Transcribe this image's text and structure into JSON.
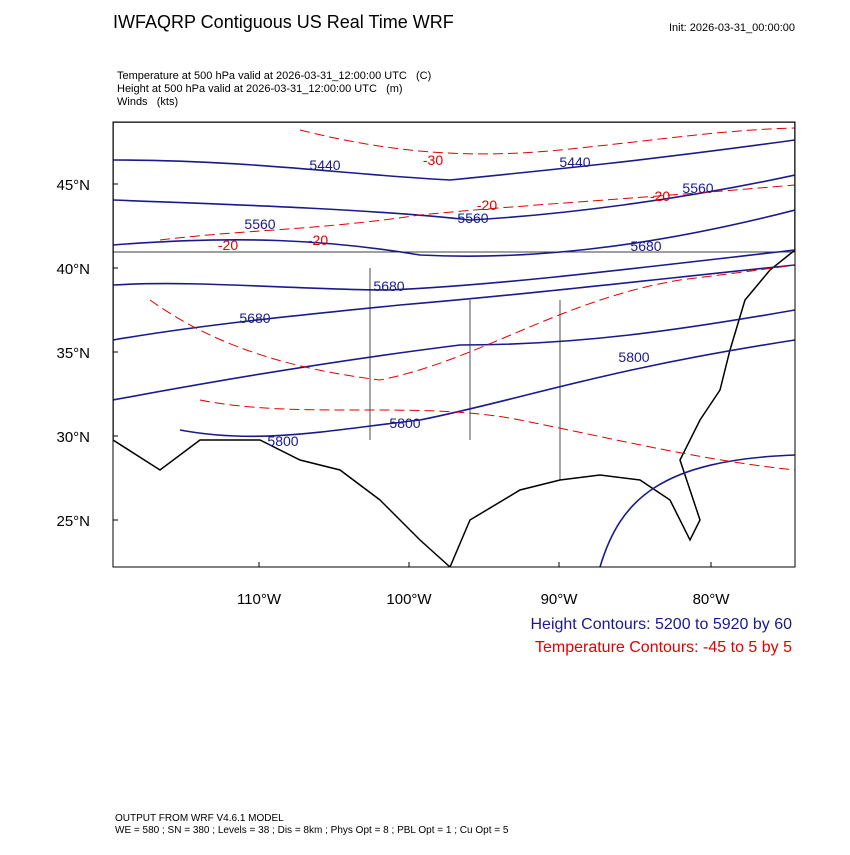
{
  "header": {
    "title": "IWFAQRP Contiguous US Real Time WRF",
    "init": "Init: 2026-03-31_00:00:00",
    "fields": [
      "Temperature at 500 hPa valid at 2026-03-31_12:00:00 UTC   (C)",
      "Height at 500 hPa valid at 2026-03-31_12:00:00 UTC   (m)",
      "Winds   (kts)"
    ]
  },
  "contour_labels": {
    "height": [
      "5440",
      "5440",
      "5560",
      "5560",
      "5560",
      "5680",
      "5680",
      "5680",
      "5800",
      "5800",
      "5800"
    ],
    "temperature": [
      "-30",
      "-20",
      "-20",
      "-20",
      "-20"
    ]
  },
  "axes": {
    "latitude": [
      "45°N",
      "40°N",
      "35°N",
      "30°N",
      "25°N"
    ],
    "longitude": [
      "110°W",
      "100°W",
      "90°W",
      "80°W"
    ]
  },
  "legend": {
    "height": "Height Contours: 5200 to 5920 by 60",
    "temperature": "Temperature Contours: -45 to 5 by 5"
  },
  "footer": [
    "OUTPUT FROM WRF V4.6.1 MODEL",
    "WE = 580 ; SN = 380 ; Levels = 38 ; Dis = 8km ; Phys Opt = 8 ; PBL Opt = 1 ; Cu Opt = 5"
  ]
}
